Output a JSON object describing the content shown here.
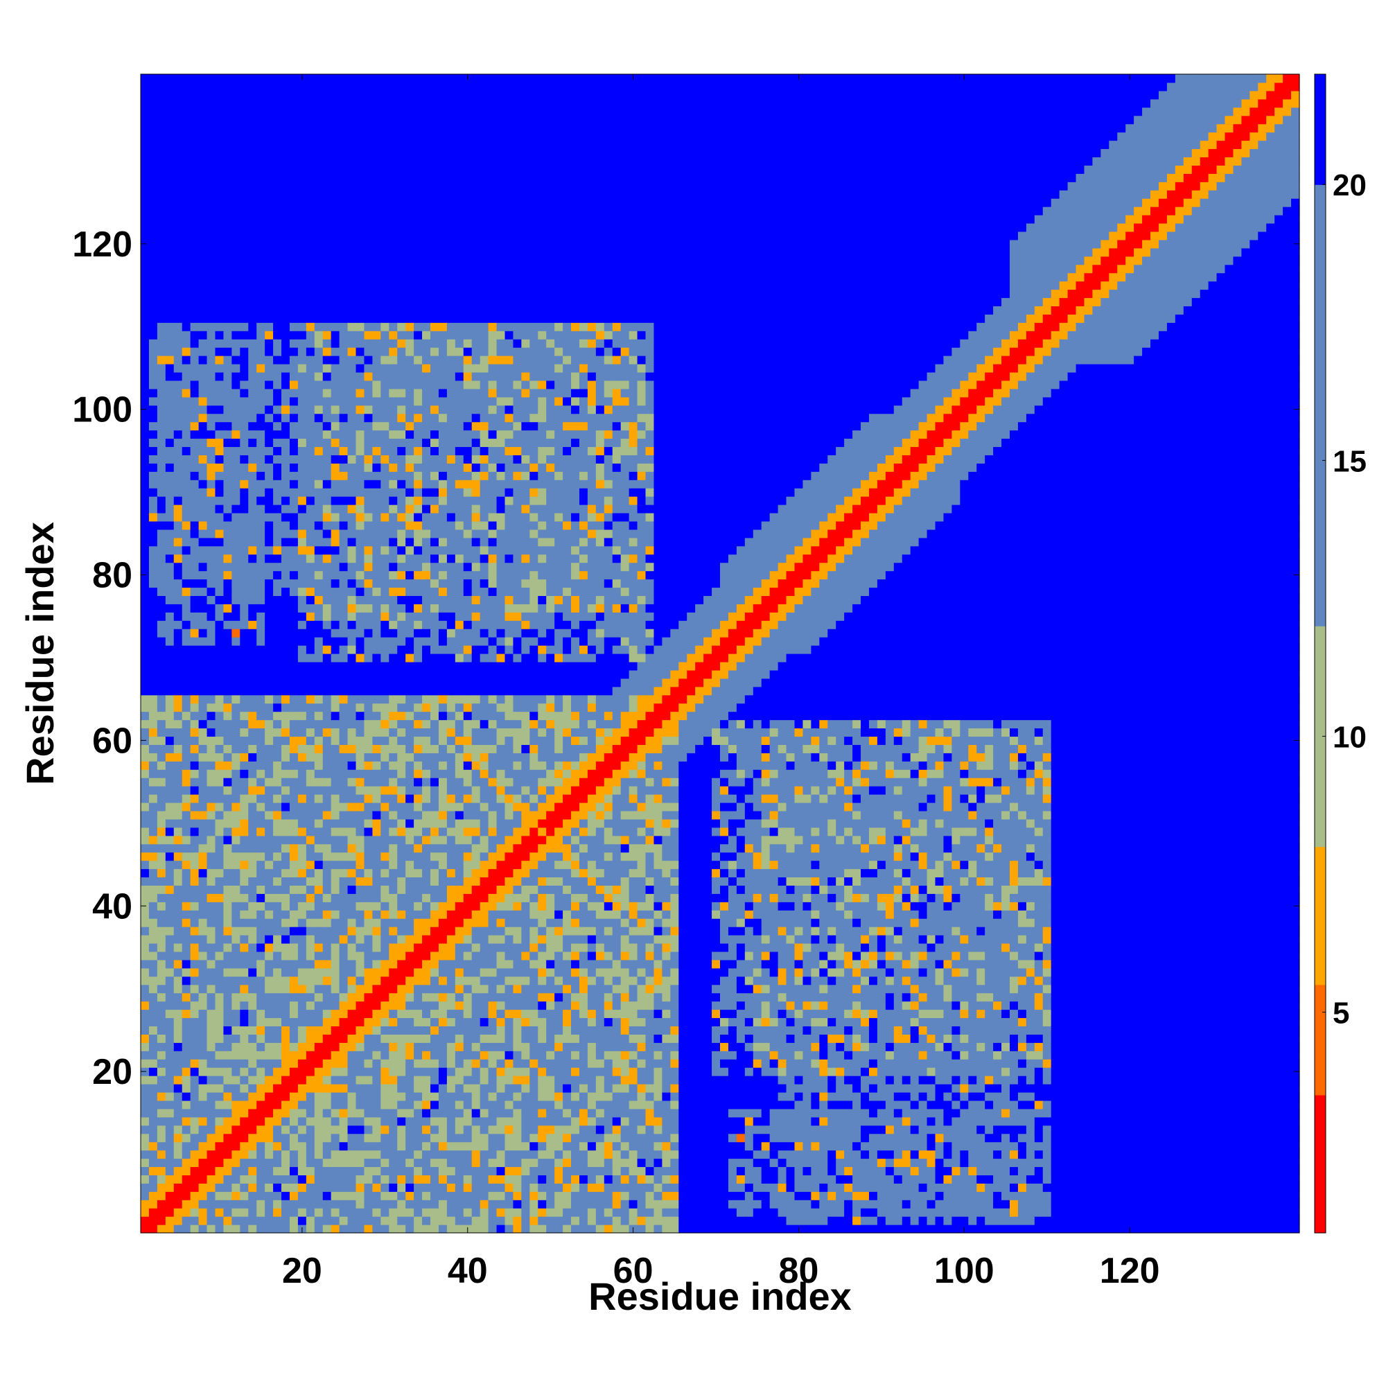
{
  "chart_data": {
    "type": "heatmap",
    "title": "",
    "xlabel": "Residue index",
    "ylabel": "Residue index",
    "x_range": [
      1,
      140
    ],
    "y_range": [
      1,
      140
    ],
    "x_ticks": [
      20,
      40,
      60,
      80,
      100,
      120
    ],
    "y_ticks": [
      20,
      40,
      60,
      80,
      100,
      120
    ],
    "colorbar": {
      "range": [
        1,
        22
      ],
      "ticks": [
        5,
        10,
        15,
        20
      ],
      "position": "right",
      "colors": {
        "low": "#ff0000",
        "mid_low": "#ff6a00",
        "mid": "#ffa500",
        "mid_high": "#a9bd8a",
        "high": "#5f86c0",
        "max": "#0000ff"
      }
    },
    "grid": false,
    "cell_value_encoding": "symmetric pairwise residue distance map; low values near the diagonal and at contact clusters, saturated above 20",
    "clusters": [
      {
        "region": "diagonal",
        "value_near": 2.5
      },
      {
        "region": "x 25-65, y 20-65 block",
        "value_near": 13
      },
      {
        "region": "x 75-110, y 20-60 block",
        "value_near": 15
      },
      {
        "region": "x 3-15, y 72-108 block",
        "value_near": 15
      },
      {
        "region": "x 22-60, y 72-110 block",
        "value_near": 15
      },
      {
        "region": "x 105-138, y 100-138 block",
        "value_near": 12
      }
    ]
  }
}
